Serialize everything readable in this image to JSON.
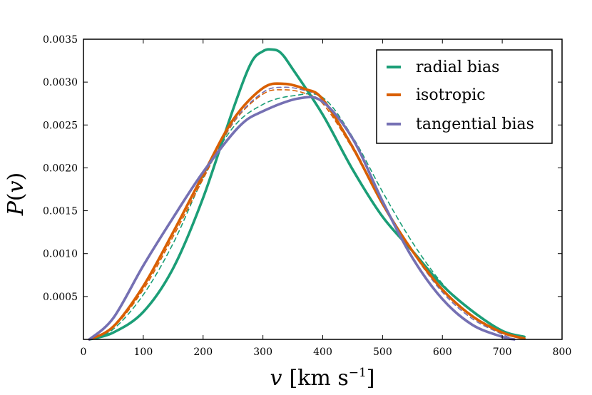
{
  "chart_data": {
    "type": "line",
    "title": "",
    "xlabel": "v [km s^-1]",
    "ylabel": "P(v)",
    "xlim": [
      0,
      800
    ],
    "ylim": [
      0,
      0.0035
    ],
    "x_ticks": [
      0,
      100,
      200,
      300,
      400,
      500,
      600,
      700,
      800
    ],
    "x_tick_labels": [
      "0",
      "100",
      "200",
      "300",
      "400",
      "500",
      "600",
      "700",
      "800"
    ],
    "y_ticks": [
      0.0005,
      0.001,
      0.0015,
      0.002,
      0.0025,
      0.003,
      0.0035
    ],
    "y_tick_labels": [
      "0.0005",
      "0.0010",
      "0.0015",
      "0.0020",
      "0.0025",
      "0.0030",
      "0.0035"
    ],
    "legend_position": "top-right",
    "labels": {
      "y_main": "P",
      "y_open": "(",
      "y_var": "v",
      "y_close": ")",
      "x_var": "v",
      "x_unit_open": "[km s",
      "x_exp": "−1",
      "x_unit_close": "]"
    },
    "series": [
      {
        "name": "radial bias",
        "color": "#1b9e77",
        "style": "solid",
        "x": [
          10,
          50,
          100,
          150,
          200,
          250,
          280,
          300,
          315,
          330,
          350,
          400,
          450,
          500,
          550,
          600,
          650,
          700,
          737
        ],
        "y": [
          0.0,
          8e-05,
          0.00032,
          0.00083,
          0.00165,
          0.00268,
          0.00322,
          0.00336,
          0.00338,
          0.00334,
          0.00315,
          0.00262,
          0.00198,
          0.00143,
          0.00103,
          0.00063,
          0.00033,
          0.0001,
          3e-05
        ]
      },
      {
        "name": "isotropic",
        "color": "#d95f02",
        "style": "solid",
        "x": [
          10,
          50,
          100,
          150,
          200,
          250,
          300,
          335,
          370,
          400,
          450,
          500,
          550,
          600,
          650,
          700,
          737
        ],
        "y": [
          0.0,
          0.00015,
          0.00062,
          0.00125,
          0.00192,
          0.00256,
          0.00293,
          0.00298,
          0.00292,
          0.0028,
          0.00224,
          0.00158,
          0.00103,
          0.00058,
          0.00027,
          8e-05,
          1e-05
        ]
      },
      {
        "name": "tangential bias",
        "color": "#7570b3",
        "style": "solid",
        "x": [
          10,
          50,
          100,
          150,
          200,
          260,
          300,
          360,
          400,
          450,
          500,
          550,
          600,
          650,
          700,
          720
        ],
        "y": [
          0.0,
          0.00025,
          0.00086,
          0.00142,
          0.00195,
          0.00248,
          0.00266,
          0.00281,
          0.00277,
          0.00234,
          0.00161,
          0.00095,
          0.00047,
          0.00017,
          3e-05,
          0.0
        ]
      },
      {
        "name": "radial bias (dashed)",
        "color": "#1b9e77",
        "style": "dashed",
        "x": [
          10,
          50,
          100,
          150,
          200,
          250,
          300,
          350,
          400,
          450,
          500,
          550,
          600,
          650,
          700,
          737
        ],
        "y": [
          0.0,
          0.00012,
          0.00052,
          0.00112,
          0.00188,
          0.00247,
          0.00274,
          0.00284,
          0.00282,
          0.00236,
          0.00172,
          0.00113,
          0.00065,
          0.00032,
          0.0001,
          3e-05
        ]
      },
      {
        "name": "isotropic (dashed)",
        "color": "#d95f02",
        "style": "dashed",
        "x": [
          10,
          50,
          100,
          150,
          200,
          250,
          300,
          335,
          370,
          400,
          450,
          500,
          550,
          600,
          650,
          700,
          737
        ],
        "y": [
          0.0,
          0.00014,
          0.00058,
          0.0012,
          0.00187,
          0.00252,
          0.00286,
          0.00291,
          0.00287,
          0.00275,
          0.00222,
          0.00157,
          0.00103,
          0.00059,
          0.00028,
          9e-05,
          1e-05
        ]
      },
      {
        "name": "tangential bias (dashed)",
        "color": "#7570b3",
        "style": "dashed",
        "x": [
          10,
          50,
          100,
          150,
          200,
          250,
          300,
          335,
          370,
          400,
          450,
          500,
          550,
          600,
          650,
          700,
          720
        ],
        "y": [
          0.0,
          0.00016,
          0.00063,
          0.00124,
          0.0019,
          0.00253,
          0.00288,
          0.00294,
          0.0029,
          0.00279,
          0.00226,
          0.00159,
          0.00102,
          0.00055,
          0.00024,
          6e-05,
          0.0
        ]
      }
    ]
  }
}
